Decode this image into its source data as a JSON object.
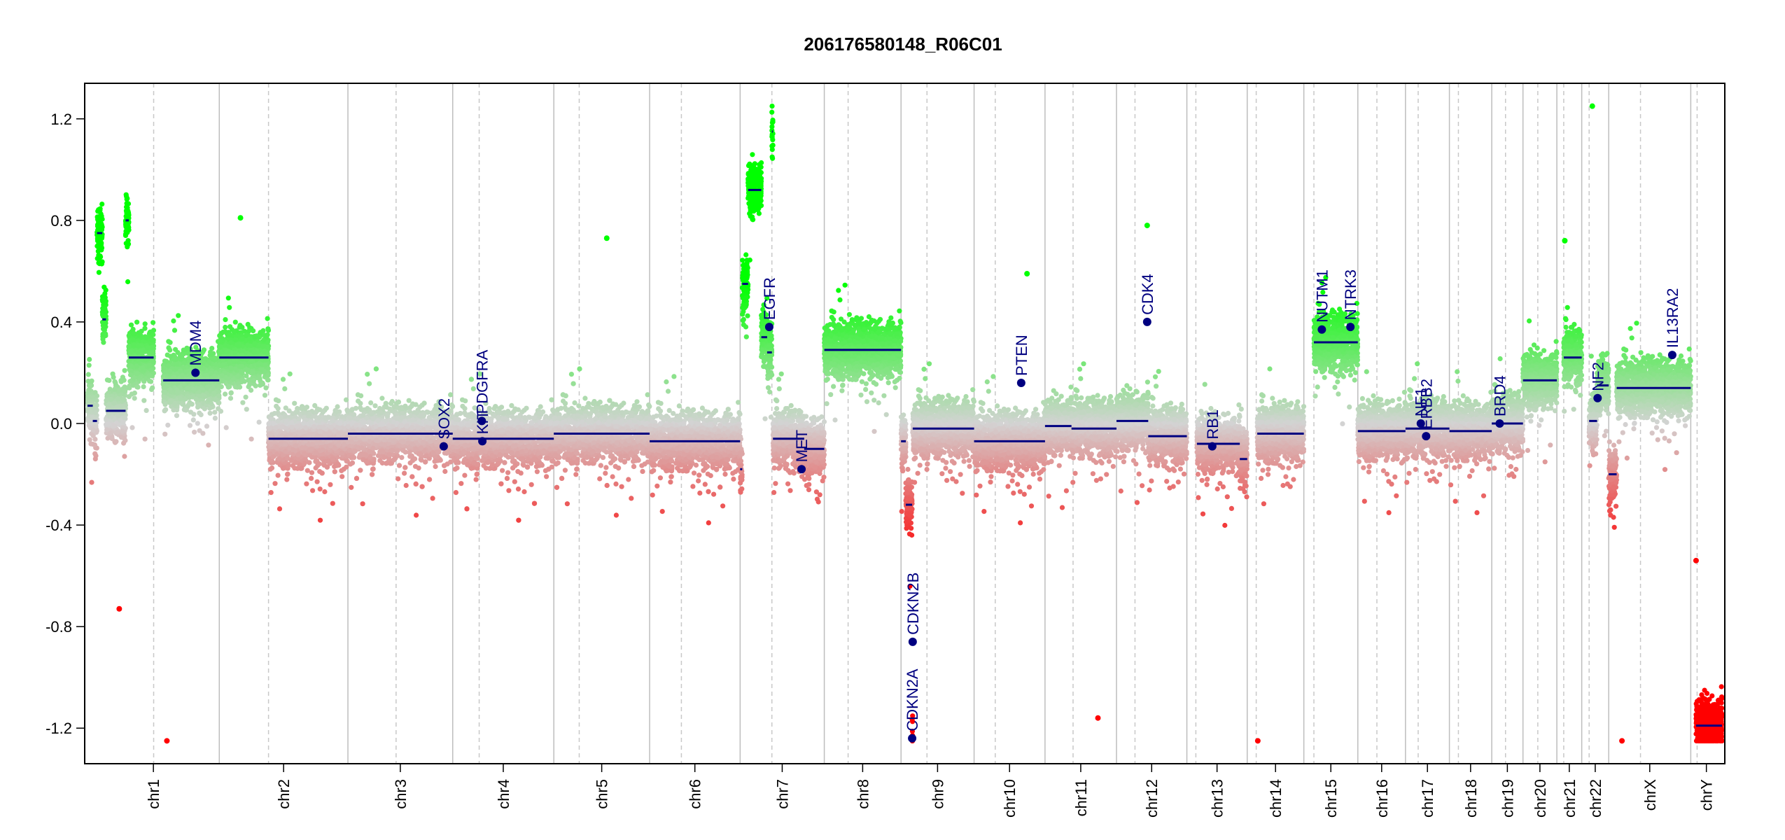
{
  "chart_data": {
    "type": "scatter",
    "title": "206176580148_R06C01",
    "xlabel": "",
    "ylabel": "",
    "ylim": [
      -1.34,
      1.34
    ],
    "yticks": [
      -1.2,
      -0.8,
      -0.4,
      0.0,
      0.4,
      0.8,
      1.2
    ],
    "ytick_labels": [
      "-1.2",
      "-0.8",
      "-0.4",
      "0.0",
      "0.4",
      "0.8",
      "1.2"
    ],
    "grid": false,
    "colors": {
      "gain": "#00ff00",
      "loss": "#ff0000",
      "neutral": "#d3d3d3",
      "segment": "#000080",
      "frame": "#000000"
    },
    "chromosomes": [
      {
        "name": "chr1",
        "length": 249,
        "centromere": 125
      },
      {
        "name": "chr2",
        "length": 243,
        "centromere": 93
      },
      {
        "name": "chr3",
        "length": 198,
        "centromere": 91
      },
      {
        "name": "chr4",
        "length": 191,
        "centromere": 50
      },
      {
        "name": "chr5",
        "length": 181,
        "centromere": 48
      },
      {
        "name": "chr6",
        "length": 171,
        "centromere": 60
      },
      {
        "name": "chr7",
        "length": 159,
        "centromere": 60
      },
      {
        "name": "chr8",
        "length": 145,
        "centromere": 45
      },
      {
        "name": "chr9",
        "length": 138,
        "centromere": 49
      },
      {
        "name": "chr10",
        "length": 134,
        "centromere": 40
      },
      {
        "name": "chr11",
        "length": 135,
        "centromere": 53
      },
      {
        "name": "chr12",
        "length": 133,
        "centromere": 35
      },
      {
        "name": "chr13",
        "length": 114,
        "centromere": 17
      },
      {
        "name": "chr14",
        "length": 107,
        "centromere": 17
      },
      {
        "name": "chr15",
        "length": 102,
        "centromere": 19
      },
      {
        "name": "chr16",
        "length": 90,
        "centromere": 36
      },
      {
        "name": "chr17",
        "length": 83,
        "centromere": 24
      },
      {
        "name": "chr18",
        "length": 80,
        "centromere": 17
      },
      {
        "name": "chr19",
        "length": 59,
        "centromere": 26
      },
      {
        "name": "chr20",
        "length": 64,
        "centromere": 28
      },
      {
        "name": "chr21",
        "length": 47,
        "centromere": 13
      },
      {
        "name": "chr22",
        "length": 51,
        "centromere": 14
      },
      {
        "name": "chrX",
        "length": 155,
        "centromere": 60
      },
      {
        "name": "chrY",
        "length": 59,
        "centromere": 12
      }
    ],
    "series": [
      {
        "name": "",
        "segments": [
          {
            "chr": "chr1",
            "start": 0,
            "end": 10,
            "value": 0.07
          },
          {
            "chr": "chr1",
            "start": 10,
            "end": 18,
            "value": 0.01
          },
          {
            "chr": "chr1",
            "start": 18,
            "end": 28,
            "value": 0.75
          },
          {
            "chr": "chr1",
            "start": 28,
            "end": 35,
            "value": 0.41
          },
          {
            "chr": "chr1",
            "start": 35,
            "end": 72,
            "value": 0.05
          },
          {
            "chr": "chr1",
            "start": 72,
            "end": 78,
            "value": 0.8
          },
          {
            "chr": "chr1",
            "start": 78,
            "end": 125,
            "value": 0.26
          },
          {
            "chr": "chr1",
            "start": 143,
            "end": 249,
            "value": 0.17
          },
          {
            "chr": "chr2",
            "start": 0,
            "end": 93,
            "value": 0.26
          },
          {
            "chr": "chr2",
            "start": 93,
            "end": 243,
            "value": -0.06
          },
          {
            "chr": "chr3",
            "start": 0,
            "end": 198,
            "value": -0.04
          },
          {
            "chr": "chr4",
            "start": 0,
            "end": 191,
            "value": -0.06
          },
          {
            "chr": "chr5",
            "start": 0,
            "end": 181,
            "value": -0.04
          },
          {
            "chr": "chr6",
            "start": 0,
            "end": 171,
            "value": -0.07
          },
          {
            "chr": "chr7",
            "start": 0,
            "end": 4,
            "value": -0.18
          },
          {
            "chr": "chr7",
            "start": 4,
            "end": 15,
            "value": 0.55
          },
          {
            "chr": "chr7",
            "start": 15,
            "end": 40,
            "value": 0.92
          },
          {
            "chr": "chr7",
            "start": 40,
            "end": 51,
            "value": 0.34
          },
          {
            "chr": "chr7",
            "start": 51,
            "end": 60,
            "value": 0.28
          },
          {
            "chr": "chr7",
            "start": 60,
            "end": 62,
            "value": 1.15
          },
          {
            "chr": "chr7",
            "start": 62,
            "end": 121,
            "value": -0.06
          },
          {
            "chr": "chr7",
            "start": 121,
            "end": 159,
            "value": -0.1
          },
          {
            "chr": "chr8",
            "start": 0,
            "end": 145,
            "value": 0.29
          },
          {
            "chr": "chr9",
            "start": 0,
            "end": 9,
            "value": -0.07
          },
          {
            "chr": "chr9",
            "start": 9,
            "end": 21,
            "value": -0.32
          },
          {
            "chr": "chr9",
            "start": 21,
            "end": 22,
            "value": -1.24
          },
          {
            "chr": "chr9",
            "start": 22,
            "end": 138,
            "value": -0.02
          },
          {
            "chr": "chr10",
            "start": 0,
            "end": 134,
            "value": -0.07
          },
          {
            "chr": "chr11",
            "start": 0,
            "end": 50,
            "value": -0.01
          },
          {
            "chr": "chr11",
            "start": 50,
            "end": 135,
            "value": -0.02
          },
          {
            "chr": "chr12",
            "start": 0,
            "end": 60,
            "value": 0.01
          },
          {
            "chr": "chr12",
            "start": 60,
            "end": 133,
            "value": -0.05
          },
          {
            "chr": "chr13",
            "start": 19,
            "end": 100,
            "value": -0.08
          },
          {
            "chr": "chr13",
            "start": 100,
            "end": 114,
            "value": -0.14
          },
          {
            "chr": "chr14",
            "start": 19,
            "end": 107,
            "value": -0.04
          },
          {
            "chr": "chr15",
            "start": 19,
            "end": 102,
            "value": 0.32
          },
          {
            "chr": "chr16",
            "start": 0,
            "end": 90,
            "value": -0.03
          },
          {
            "chr": "chr17",
            "start": 0,
            "end": 83,
            "value": -0.02
          },
          {
            "chr": "chr18",
            "start": 0,
            "end": 80,
            "value": -0.03
          },
          {
            "chr": "chr19",
            "start": 0,
            "end": 59,
            "value": 0.0
          },
          {
            "chr": "chr20",
            "start": 0,
            "end": 64,
            "value": 0.17
          },
          {
            "chr": "chr21",
            "start": 13,
            "end": 47,
            "value": 0.26
          },
          {
            "chr": "chr22",
            "start": 14,
            "end": 29,
            "value": 0.01
          },
          {
            "chr": "chr22",
            "start": 29,
            "end": 51,
            "value": 0.15
          },
          {
            "chr": "chrX",
            "start": 0,
            "end": 15,
            "value": -0.2
          },
          {
            "chr": "chrX",
            "start": 15,
            "end": 155,
            "value": 0.14
          },
          {
            "chr": "chrY",
            "start": 10,
            "end": 59,
            "value": -1.19
          }
        ]
      }
    ],
    "annotations": [
      {
        "label": "MDM4",
        "chr": "chr1",
        "pos": 204,
        "value": 0.2
      },
      {
        "label": "PDGFRA",
        "chr": "chr4",
        "pos": 55,
        "value": 0.01
      },
      {
        "label": "KIT",
        "chr": "chr4",
        "pos": 56,
        "value": -0.07
      },
      {
        "label": "SOX2",
        "chr": "chr3",
        "pos": 181,
        "value": -0.09
      },
      {
        "label": "EGFR",
        "chr": "chr7",
        "pos": 55,
        "value": 0.38
      },
      {
        "label": "MET",
        "chr": "chr7",
        "pos": 116,
        "value": -0.18
      },
      {
        "label": "CDKN2A",
        "chr": "chr9",
        "pos": 21,
        "value": -1.24
      },
      {
        "label": "CDKN2B",
        "chr": "chr9",
        "pos": 22,
        "value": -0.86
      },
      {
        "label": "PTEN",
        "chr": "chr10",
        "pos": 89,
        "value": 0.16
      },
      {
        "label": "CDK4",
        "chr": "chr12",
        "pos": 58,
        "value": 0.4
      },
      {
        "label": "RB1",
        "chr": "chr13",
        "pos": 48,
        "value": -0.09
      },
      {
        "label": "NUTM1",
        "chr": "chr15",
        "pos": 34,
        "value": 0.37
      },
      {
        "label": "NTRK3",
        "chr": "chr15",
        "pos": 88,
        "value": 0.38
      },
      {
        "label": "NF1",
        "chr": "chr17",
        "pos": 29,
        "value": 0.0
      },
      {
        "label": "ERBB2",
        "chr": "chr17",
        "pos": 39,
        "value": -0.05
      },
      {
        "label": "BRD4",
        "chr": "chr19",
        "pos": 15,
        "value": 0.0
      },
      {
        "label": "NF2",
        "chr": "chr22",
        "pos": 30,
        "value": 0.1
      },
      {
        "label": "IL13RA2",
        "chr": "chrX",
        "pos": 120,
        "value": 0.27
      }
    ],
    "outliers": [
      {
        "chr": "chr1",
        "pos": 60,
        "value": -0.73
      },
      {
        "chr": "chr1",
        "pos": 150,
        "value": -1.25
      },
      {
        "chr": "chr2",
        "pos": 40,
        "value": 0.81
      },
      {
        "chr": "chr5",
        "pos": 100,
        "value": 0.73
      },
      {
        "chr": "chr10",
        "pos": 100,
        "value": 0.59
      },
      {
        "chr": "chr11",
        "pos": 100,
        "value": -1.16
      },
      {
        "chr": "chr12",
        "pos": 58,
        "value": 0.78
      },
      {
        "chr": "chr14",
        "pos": 20,
        "value": -1.25
      },
      {
        "chr": "chr21",
        "pos": 15,
        "value": 0.72
      },
      {
        "chr": "chr22",
        "pos": 20,
        "value": 1.25
      },
      {
        "chr": "chrX",
        "pos": 25,
        "value": -1.25
      },
      {
        "chr": "chrY",
        "pos": 10,
        "value": -0.54
      }
    ]
  }
}
